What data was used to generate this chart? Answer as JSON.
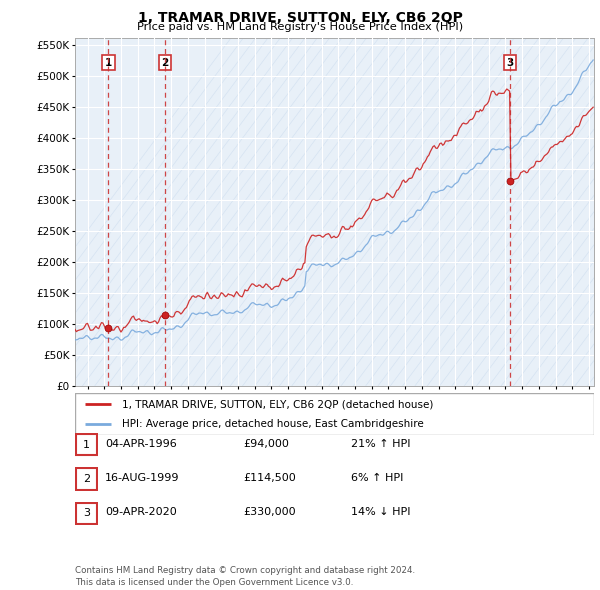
{
  "title": "1, TRAMAR DRIVE, SUTTON, ELY, CB6 2QP",
  "subtitle": "Price paid vs. HM Land Registry's House Price Index (HPI)",
  "ylim": [
    0,
    560000
  ],
  "yticks": [
    0,
    50000,
    100000,
    150000,
    200000,
    250000,
    300000,
    350000,
    400000,
    450000,
    500000,
    550000
  ],
  "ytick_labels": [
    "£0",
    "£50K",
    "£100K",
    "£150K",
    "£200K",
    "£250K",
    "£300K",
    "£350K",
    "£400K",
    "£450K",
    "£500K",
    "£550K"
  ],
  "xlim_start": 1994.25,
  "xlim_end": 2025.3,
  "sale_dates": [
    1996.25,
    1999.62,
    2020.27
  ],
  "sale_prices": [
    94000,
    114500,
    330000
  ],
  "sale_labels": [
    "1",
    "2",
    "3"
  ],
  "legend_line1": "1, TRAMAR DRIVE, SUTTON, ELY, CB6 2QP (detached house)",
  "legend_line2": "HPI: Average price, detached house, East Cambridgeshire",
  "table_rows": [
    [
      "1",
      "04-APR-1996",
      "£94,000",
      "21% ↑ HPI"
    ],
    [
      "2",
      "16-AUG-1999",
      "£114,500",
      "6% ↑ HPI"
    ],
    [
      "3",
      "09-APR-2020",
      "£330,000",
      "14% ↓ HPI"
    ]
  ],
  "footnote": "Contains HM Land Registry data © Crown copyright and database right 2024.\nThis data is licensed under the Open Government Licence v3.0.",
  "hpi_color": "#7aaadd",
  "price_color": "#cc2222",
  "vline_color": "#cc3333",
  "bg_color": "#e8f0f8",
  "grid_color": "#cccccc",
  "sale_dot_color": "#cc2222",
  "hatch_color": "#d0dff0"
}
